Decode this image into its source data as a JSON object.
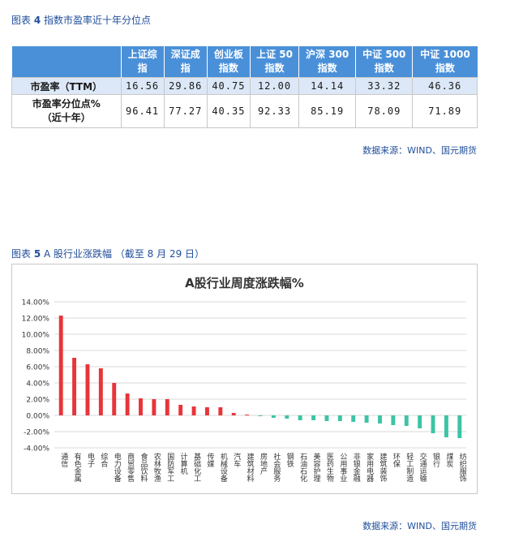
{
  "caption1": {
    "prefix": "图表",
    "num": "4",
    "title": "指数市盈率近十年分位点"
  },
  "table": {
    "headers": [
      [
        "上证综",
        "指"
      ],
      [
        "深证成",
        "指"
      ],
      [
        "创业板",
        "指数"
      ],
      [
        "上证 50",
        "指数"
      ],
      [
        "沪深 300",
        "指数"
      ],
      [
        "中证 500",
        "指数"
      ],
      [
        "中证 1000",
        "指数"
      ]
    ],
    "rows": [
      {
        "label": [
          "市盈率（TTM）"
        ],
        "values": [
          "16.56",
          "29.86",
          "40.75",
          "12.00",
          "14.14",
          "33.32",
          "46.36"
        ]
      },
      {
        "label": [
          "市盈率分位点%",
          "（近十年）"
        ],
        "values": [
          "96.41",
          "77.27",
          "40.35",
          "92.33",
          "85.19",
          "78.09",
          "71.89"
        ]
      }
    ]
  },
  "source1": "数据来源：WIND、国元期货",
  "caption2": {
    "prefix": "图表",
    "num": "5",
    "title": "A 股行业涨跌幅 （截至 8 月 29 日）"
  },
  "chart_data": {
    "type": "bar",
    "title": "A股行业周度涨跌幅%",
    "ylim": [
      -4,
      14
    ],
    "yticks": [
      "14.00%",
      "12.00%",
      "10.00%",
      "8.00%",
      "6.00%",
      "4.00%",
      "2.00%",
      "0.00%",
      "-2.00%",
      "-4.00%"
    ],
    "grid": true,
    "legend": "none",
    "positive_color": "#e8353a",
    "negative_color": "#3cc4a5",
    "categories": [
      "通信",
      "有色金属",
      "电子",
      "综合",
      "电力设备",
      "商贸零售",
      "食品饮料",
      "农林牧渔",
      "国防军工",
      "计算机",
      "基础化工",
      "传媒",
      "机械设备",
      "汽车",
      "建筑材料",
      "房地产",
      "社会服务",
      "钢铁",
      "石油石化",
      "美容护理",
      "医药生物",
      "公用事业",
      "非银金融",
      "家用电器",
      "建筑装饰",
      "环保",
      "轻工制造",
      "交通运输",
      "银行",
      "煤炭",
      "纺织服饰"
    ],
    "values": [
      12.3,
      7.1,
      6.3,
      5.8,
      4.0,
      2.7,
      2.1,
      2.0,
      2.0,
      1.3,
      1.1,
      1.0,
      1.0,
      0.3,
      0.1,
      -0.1,
      -0.3,
      -0.4,
      -0.6,
      -0.6,
      -0.7,
      -0.7,
      -0.8,
      -0.9,
      -1.0,
      -1.2,
      -1.3,
      -1.6,
      -2.2,
      -2.7,
      -2.8
    ]
  },
  "source2": "数据来源：WIND、国元期货"
}
